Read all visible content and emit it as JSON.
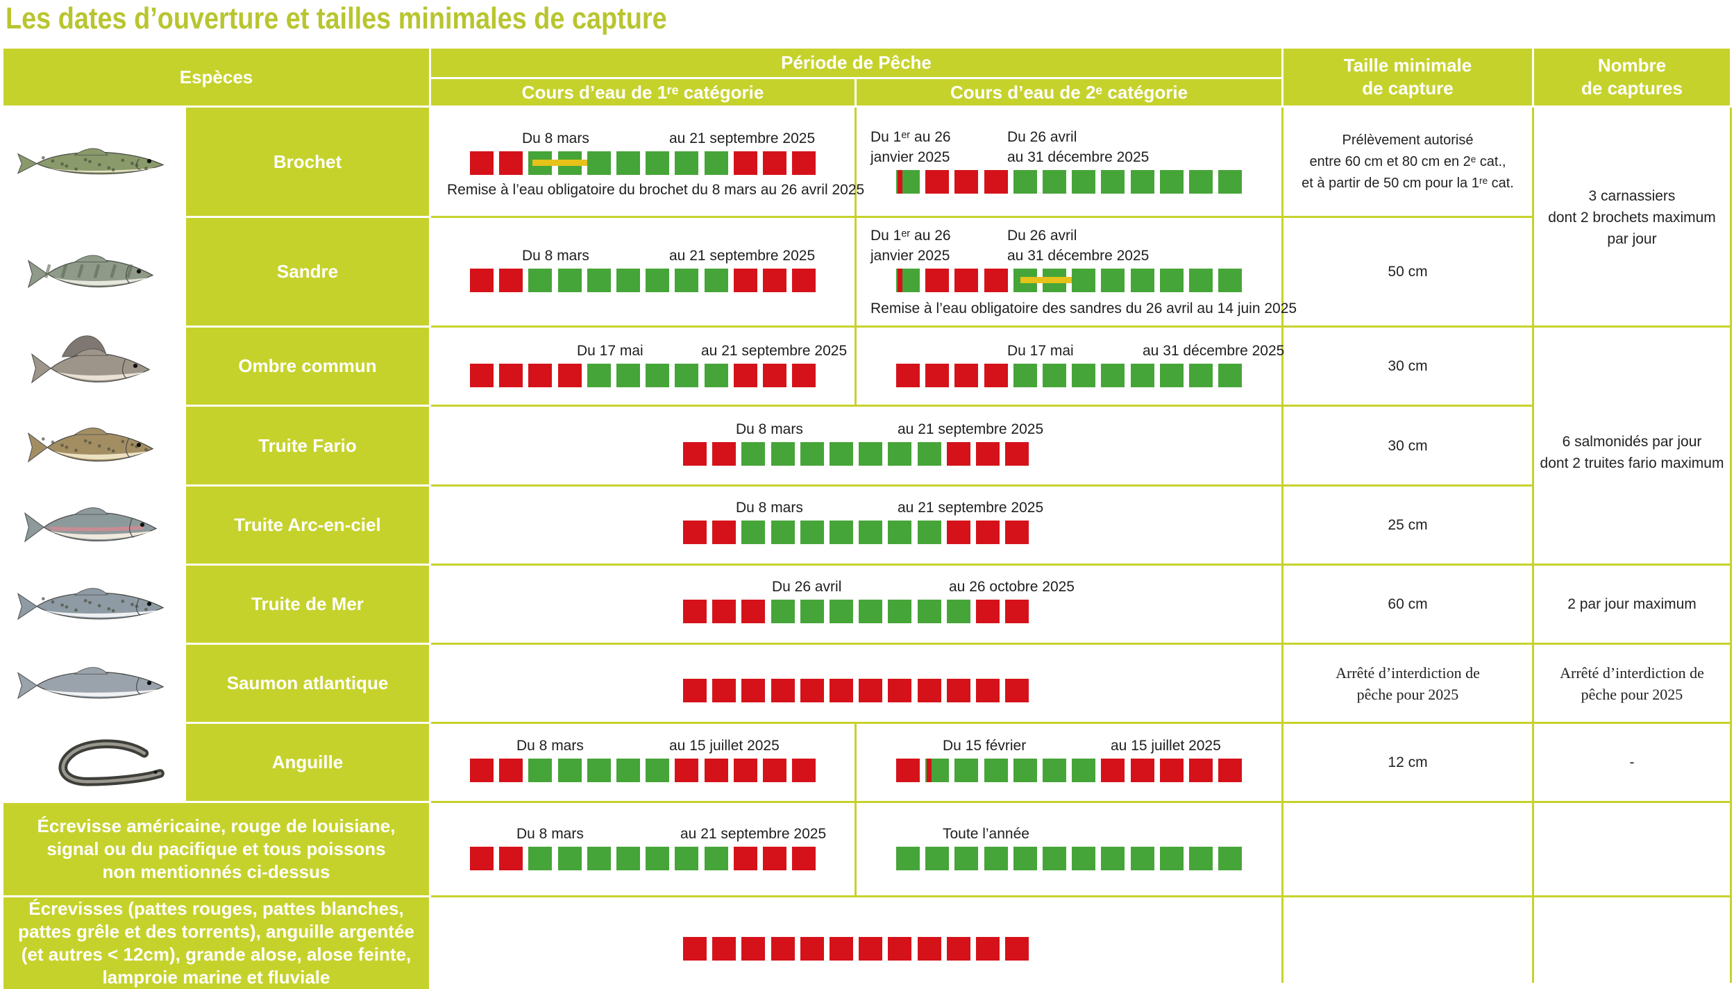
{
  "title": "Les dates d’ouverture et tailles minimales de capture",
  "header": {
    "especes": "Espèces",
    "periode": "Période de Pêche",
    "cat1": "Cours d’eau de 1ʳᵉ catégorie",
    "cat2": "Cours d’eau de 2ᵉ catégorie",
    "taille_l1": "Taille minimale",
    "taille_l2": "de capture",
    "nombre_l1": "Nombre",
    "nombre_l2": "de captures"
  },
  "colors": {
    "green_header": "#c6d22c",
    "open": "#46a538",
    "closed": "#d5121a",
    "release": "#e6c21a"
  },
  "rows": [
    {
      "name": "Brochet",
      "icon": "pike-icon",
      "c1_from": "Du 8 mars",
      "c1_to": "au 21 septembre 2025",
      "c1_note": "Remise à l’eau obligatoire du brochet du 8 mars au 26 avril 2025",
      "c2_from_l1": "Du 1ᵉʳ au 26",
      "c2_from_l2": "janvier 2025",
      "c2_to_l1": "Du 26 avril",
      "c2_to_l2": "au 31 décembre 2025",
      "taille_l1": "Prélèvement autorisé",
      "taille_l2": "entre 60 cm et 80 cm en 2ᵉ cat.,",
      "taille_l3": "et à partir de 50 cm pour la 1ʳᵉ cat."
    },
    {
      "name": "Sandre",
      "icon": "zander-icon",
      "c1_from": "Du 8 mars",
      "c1_to": "au 21 septembre 2025",
      "c2_from_l1": "Du 1ᵉʳ au 26",
      "c2_from_l2": "janvier 2025",
      "c2_to_l1": "Du 26 avril",
      "c2_to_l2": "au 31 décembre 2025",
      "c2_note": "Remise à l’eau obligatoire des sandres du 26 avril au 14 juin 2025",
      "taille": "50 cm"
    },
    {
      "name": "Ombre commun",
      "icon": "grayling-icon",
      "c1_from": "Du 17 mai",
      "c1_to": "au 21 septembre 2025",
      "c2_from": "Du 17 mai",
      "c2_to": "au 31 décembre 2025",
      "taille": "30 cm"
    },
    {
      "name": "Truite Fario",
      "icon": "brown-trout-icon",
      "from": "Du 8 mars",
      "to": "au 21 septembre 2025",
      "taille": "30 cm"
    },
    {
      "name": "Truite Arc-en-ciel",
      "icon": "rainbow-trout-icon",
      "from": "Du 8 mars",
      "to": "au 21 septembre 2025",
      "taille": "25 cm"
    },
    {
      "name": "Truite de Mer",
      "icon": "sea-trout-icon",
      "from": "Du 26 avril",
      "to": "au 26 octobre 2025",
      "taille": "60 cm",
      "nombre": "2 par jour maximum"
    },
    {
      "name": "Saumon atlantique",
      "icon": "salmon-icon",
      "taille_l1": "Arrêté d’interdiction de",
      "taille_l2": "pêche pour 2025",
      "nombre_l1": "Arrêté d’interdiction de",
      "nombre_l2": "pêche pour 2025"
    },
    {
      "name": "Anguille",
      "icon": "eel-icon",
      "c1_from": "Du 8 mars",
      "c1_to": "au 15 juillet 2025",
      "c2_from": "Du 15 février",
      "c2_to": "au 15 juillet 2025",
      "taille": "12 cm",
      "nombre": "-"
    },
    {
      "name_l1": "Écrevisse américaine, rouge de louisiane,",
      "name_l2": "signal ou du pacifique et tous poissons",
      "name_l3": "non mentionnés ci-dessus",
      "c1_from": "Du 8 mars",
      "c1_to": "au 21 septembre 2025",
      "c2_text": "Toute l’année"
    },
    {
      "name_l1": "Écrevisses (pattes rouges, pattes blanches,",
      "name_l2": "pattes grêle et des torrents), anguille argentée",
      "name_l3": "(et autres < 12cm), grande alose, alose feinte,",
      "name_l4": "lamproie marine et fluviale"
    }
  ],
  "groups": {
    "carnassiers_l1": "3 carnassiers",
    "carnassiers_l2": "dont 2 brochets maximum",
    "carnassiers_l3": "par jour",
    "salmonides_l1": "6 salmonidés par jour",
    "salmonides_l2": "dont 2 truites fario maximum"
  },
  "calendars": {
    "brochet_c1": {
      "open": [
        3,
        4,
        5,
        6,
        7,
        8,
        9
      ],
      "release": [
        3,
        4
      ]
    },
    "brochet_c2": {
      "open": [
        1,
        5,
        6,
        7,
        8,
        9,
        10,
        11,
        12
      ]
    },
    "sandre_c1": {
      "open": [
        3,
        4,
        5,
        6,
        7,
        8,
        9
      ]
    },
    "sandre_c2": {
      "open": [
        1,
        5,
        6,
        7,
        8,
        9,
        10,
        11,
        12
      ],
      "release": [
        5,
        6
      ]
    },
    "ombre_c1": {
      "open": [
        5,
        6,
        7,
        8,
        9
      ]
    },
    "ombre_c2": {
      "open": [
        5,
        6,
        7,
        8,
        9,
        10,
        11,
        12
      ]
    },
    "fario": {
      "open": [
        3,
        4,
        5,
        6,
        7,
        8,
        9
      ]
    },
    "arc": {
      "open": [
        3,
        4,
        5,
        6,
        7,
        8,
        9
      ]
    },
    "mer": {
      "open": [
        4,
        5,
        6,
        7,
        8,
        9,
        10
      ]
    },
    "saumon": {
      "open": []
    },
    "anguille_c1": {
      "open": [
        3,
        4,
        5,
        6,
        7
      ]
    },
    "anguille_c2": {
      "open": [
        2,
        3,
        4,
        5,
        6,
        7
      ]
    },
    "ecrev_c1": {
      "open": [
        3,
        4,
        5,
        6,
        7,
        8,
        9
      ]
    },
    "ecrev_c2": {
      "open": [
        1,
        2,
        3,
        4,
        5,
        6,
        7,
        8,
        9,
        10,
        11,
        12
      ]
    },
    "protege": {
      "open": []
    }
  }
}
